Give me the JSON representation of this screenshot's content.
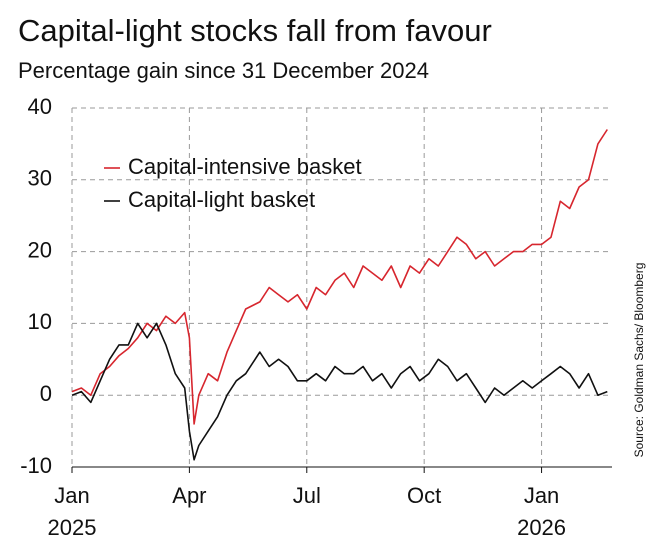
{
  "chart_data": {
    "type": "line",
    "title": "Capital-light stocks fall from favour",
    "subtitle": "Percentage gain since 31 December 2024",
    "source": "Source: Goldman Sachs/ Bloomberg",
    "x": [
      2025.0,
      2025.02,
      2025.04,
      2025.06,
      2025.08,
      2025.1,
      2025.12,
      2025.14,
      2025.16,
      2025.18,
      2025.2,
      2025.22,
      2025.24,
      2025.25,
      2025.26,
      2025.27,
      2025.29,
      2025.31,
      2025.33,
      2025.35,
      2025.37,
      2025.4,
      2025.42,
      2025.44,
      2025.46,
      2025.48,
      2025.5,
      2025.52,
      2025.54,
      2025.56,
      2025.58,
      2025.6,
      2025.62,
      2025.64,
      2025.66,
      2025.68,
      2025.7,
      2025.72,
      2025.74,
      2025.76,
      2025.78,
      2025.8,
      2025.82,
      2025.84,
      2025.86,
      2025.88,
      2025.9,
      2025.92,
      2025.94,
      2025.96,
      2025.98,
      2026.0,
      2026.02,
      2026.04,
      2026.06,
      2026.08,
      2026.1,
      2026.12,
      2026.14
    ],
    "series": [
      {
        "name": "Capital-intensive basket",
        "color": "#d7262e",
        "values": [
          0.5,
          1,
          0,
          3,
          4,
          5.5,
          6.5,
          8,
          10,
          9,
          11,
          10,
          11.5,
          8,
          -4,
          0,
          3,
          2,
          6,
          9,
          12,
          13,
          15,
          14,
          13,
          14,
          12,
          15,
          14,
          16,
          17,
          15,
          18,
          17,
          16,
          18,
          15,
          18,
          17,
          19,
          18,
          20,
          22,
          21,
          19,
          20,
          18,
          19,
          20,
          20,
          21,
          21,
          22,
          27,
          26,
          29,
          30,
          35,
          37
        ]
      },
      {
        "name": "Capital-light basket",
        "color": "#111111",
        "values": [
          0,
          0.5,
          -1,
          2,
          5,
          7,
          7,
          10,
          8,
          10,
          7,
          3,
          1,
          -5,
          -9,
          -7,
          -5,
          -3,
          0,
          2,
          3,
          6,
          4,
          5,
          4,
          2,
          2,
          3,
          2,
          4,
          3,
          3,
          4,
          2,
          3,
          1,
          3,
          4,
          2,
          3,
          5,
          4,
          2,
          3,
          1,
          -1,
          1,
          0,
          1,
          2,
          1,
          2,
          3,
          4,
          3,
          1,
          3,
          0,
          0.5
        ]
      }
    ],
    "xlim": [
      2025.0,
      2026.15
    ],
    "xticks": [
      {
        "value": 2025.0,
        "label": "Jan"
      },
      {
        "value": 2025.25,
        "label": "Apr"
      },
      {
        "value": 2025.5,
        "label": "Jul"
      },
      {
        "value": 2025.75,
        "label": "Oct"
      },
      {
        "value": 2026.0,
        "label": "Jan"
      }
    ],
    "xyears": [
      2025,
      2026
    ],
    "ylim": [
      -10,
      40
    ],
    "yticks": [
      -10,
      0,
      10,
      20,
      30,
      40
    ],
    "grid": true
  }
}
